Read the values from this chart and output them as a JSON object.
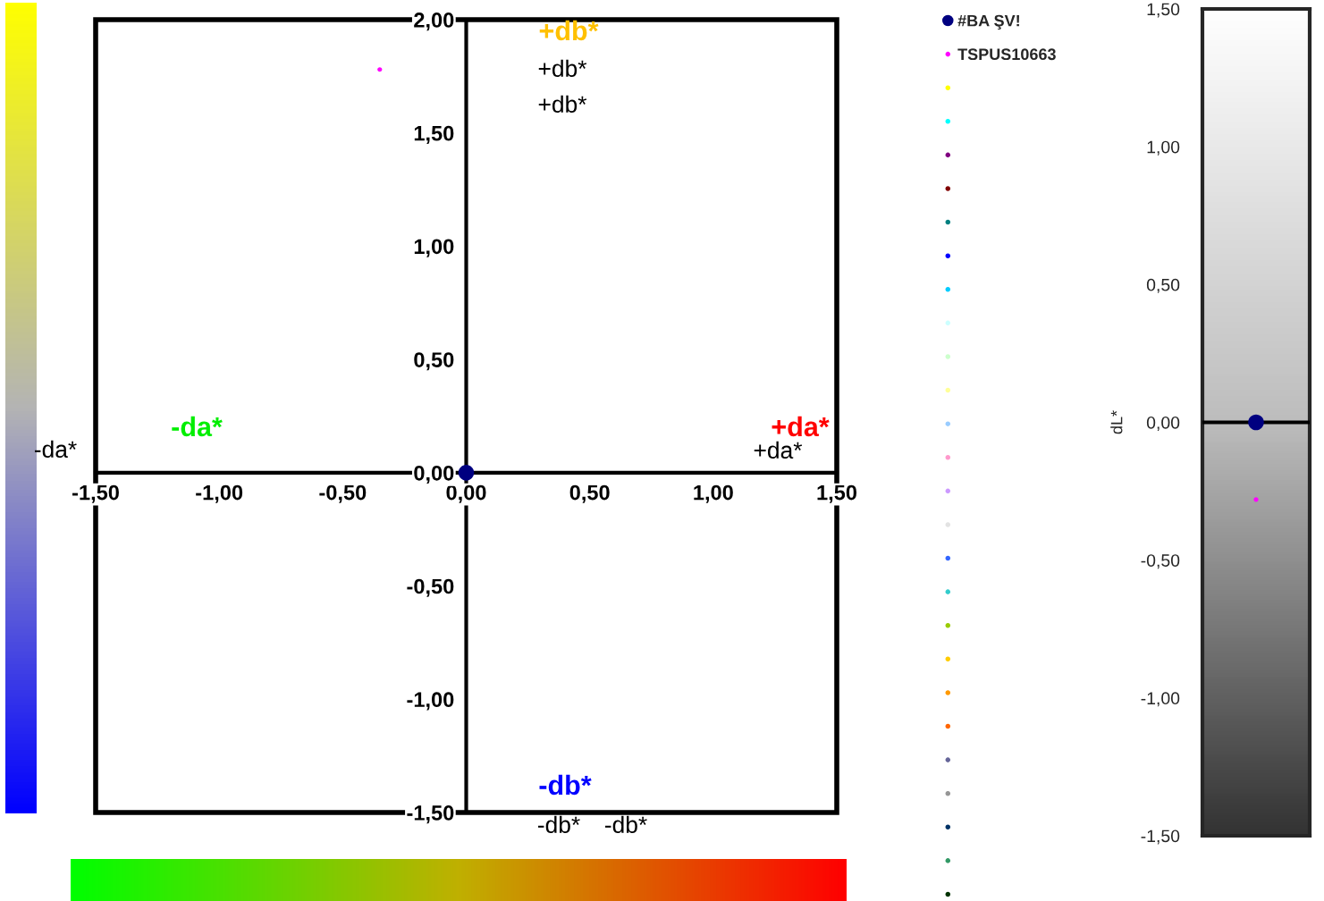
{
  "chart_data": [
    {
      "type": "scatter",
      "xlim": [
        -1.5,
        1.5
      ],
      "ylim": [
        -1.5,
        2.0
      ],
      "xticks": [
        {
          "value": -1.5,
          "label": "-1,50"
        },
        {
          "value": -1.0,
          "label": "-1,00"
        },
        {
          "value": -0.5,
          "label": "-0,50"
        },
        {
          "value": 0,
          "label": "0,00"
        },
        {
          "value": 0.5,
          "label": "0,50"
        },
        {
          "value": 1.0,
          "label": "1,00"
        },
        {
          "value": 1.5,
          "label": "1,50"
        }
      ],
      "yticks": [
        {
          "value": -1.5,
          "label": "-1,50"
        },
        {
          "value": -1.0,
          "label": "-1,00"
        },
        {
          "value": -0.5,
          "label": "-0,50"
        },
        {
          "value": 0,
          "label": "0,00"
        },
        {
          "value": 0.5,
          "label": "0,50"
        },
        {
          "value": 1.0,
          "label": "1,00"
        },
        {
          "value": 1.5,
          "label": "1,50"
        },
        {
          "value": 2.0,
          "label": "2,00"
        }
      ],
      "legend": "right",
      "grid": false,
      "marker": "circle",
      "annotations": [
        "+db*",
        "+db*",
        "+db*",
        "-da*",
        "+da*",
        "+da*",
        "-db*",
        "-db*",
        "-db*",
        "-da*"
      ],
      "series": [
        {
          "name": "#BA ŞV!",
          "color": "#000080",
          "x": [
            0
          ],
          "values": [
            0
          ]
        },
        {
          "name": "TSPUS10663",
          "color": "#ff00ff",
          "x": [
            -0.35
          ],
          "values": [
            1.78
          ]
        },
        {
          "color": "#ffff00",
          "x": [
            null
          ],
          "values": [
            null
          ]
        },
        {
          "color": "#00ffff",
          "x": [
            null
          ],
          "values": [
            null
          ]
        },
        {
          "color": "#800080",
          "x": [
            null
          ],
          "values": [
            null
          ]
        },
        {
          "color": "#800000",
          "x": [
            null
          ],
          "values": [
            null
          ]
        },
        {
          "color": "#008080",
          "x": [
            null
          ],
          "values": [
            null
          ]
        },
        {
          "color": "#0000ff",
          "x": [
            null
          ],
          "values": [
            null
          ]
        },
        {
          "color": "#00ccff",
          "x": [
            null
          ],
          "values": [
            null
          ]
        },
        {
          "color": "#ccffff",
          "x": [
            null
          ],
          "values": [
            null
          ]
        },
        {
          "color": "#ccffcc",
          "x": [
            null
          ],
          "values": [
            null
          ]
        },
        {
          "color": "#ffff99",
          "x": [
            null
          ],
          "values": [
            null
          ]
        },
        {
          "color": "#99ccff",
          "x": [
            null
          ],
          "values": [
            null
          ]
        },
        {
          "color": "#ff99cc",
          "x": [
            null
          ],
          "values": [
            null
          ]
        },
        {
          "color": "#cc99ff",
          "x": [
            null
          ],
          "values": [
            null
          ]
        },
        {
          "color": "#e3e3e3",
          "x": [
            null
          ],
          "values": [
            null
          ]
        },
        {
          "color": "#3366ff",
          "x": [
            null
          ],
          "values": [
            null
          ]
        },
        {
          "color": "#33cccc",
          "x": [
            null
          ],
          "values": [
            null
          ]
        },
        {
          "color": "#99cc00",
          "x": [
            null
          ],
          "values": [
            null
          ]
        },
        {
          "color": "#ffcc00",
          "x": [
            null
          ],
          "values": [
            null
          ]
        },
        {
          "color": "#ff9900",
          "x": [
            null
          ],
          "values": [
            null
          ]
        },
        {
          "color": "#ff6600",
          "x": [
            null
          ],
          "values": [
            null
          ]
        },
        {
          "color": "#666699",
          "x": [
            null
          ],
          "values": [
            null
          ]
        },
        {
          "color": "#969696",
          "x": [
            null
          ],
          "values": [
            null
          ]
        },
        {
          "color": "#003366",
          "x": [
            null
          ],
          "values": [
            null
          ]
        },
        {
          "color": "#339966",
          "x": [
            null
          ],
          "values": [
            null
          ]
        },
        {
          "color": "#003300",
          "x": [
            null
          ],
          "values": [
            null
          ]
        },
        {
          "color": "#333300",
          "x": [
            null
          ],
          "values": [
            null
          ]
        },
        {
          "color": "#993300",
          "x": [
            null
          ],
          "values": [
            null
          ]
        },
        {
          "color": "#993366",
          "x": [
            null
          ],
          "values": [
            null
          ]
        }
      ]
    },
    {
      "type": "scatter",
      "categories": [
        null
      ],
      "ylabel": "dL*",
      "ylim": [
        -1.5,
        1.5
      ],
      "yticks": [
        {
          "value": -1.5,
          "label": "-1,50"
        },
        {
          "value": -1.0,
          "label": "-1,00"
        },
        {
          "value": -0.5,
          "label": "-0,50"
        },
        {
          "value": 0,
          "label": "0,00"
        },
        {
          "value": 0.5,
          "label": "0,50"
        },
        {
          "value": 1.0,
          "label": "1,00"
        },
        {
          "value": 1.5,
          "label": "1,50"
        }
      ],
      "tick_labels": "y",
      "grid": false,
      "marker": "circle",
      "ref_lines": [
        {
          "axis": "y",
          "value": 0,
          "color": "#000000"
        }
      ],
      "series": [
        {
          "color": "#000080",
          "values": [
            0
          ]
        },
        {
          "color": "#ff00ff",
          "values": [
            -0.28
          ]
        }
      ]
    }
  ]
}
